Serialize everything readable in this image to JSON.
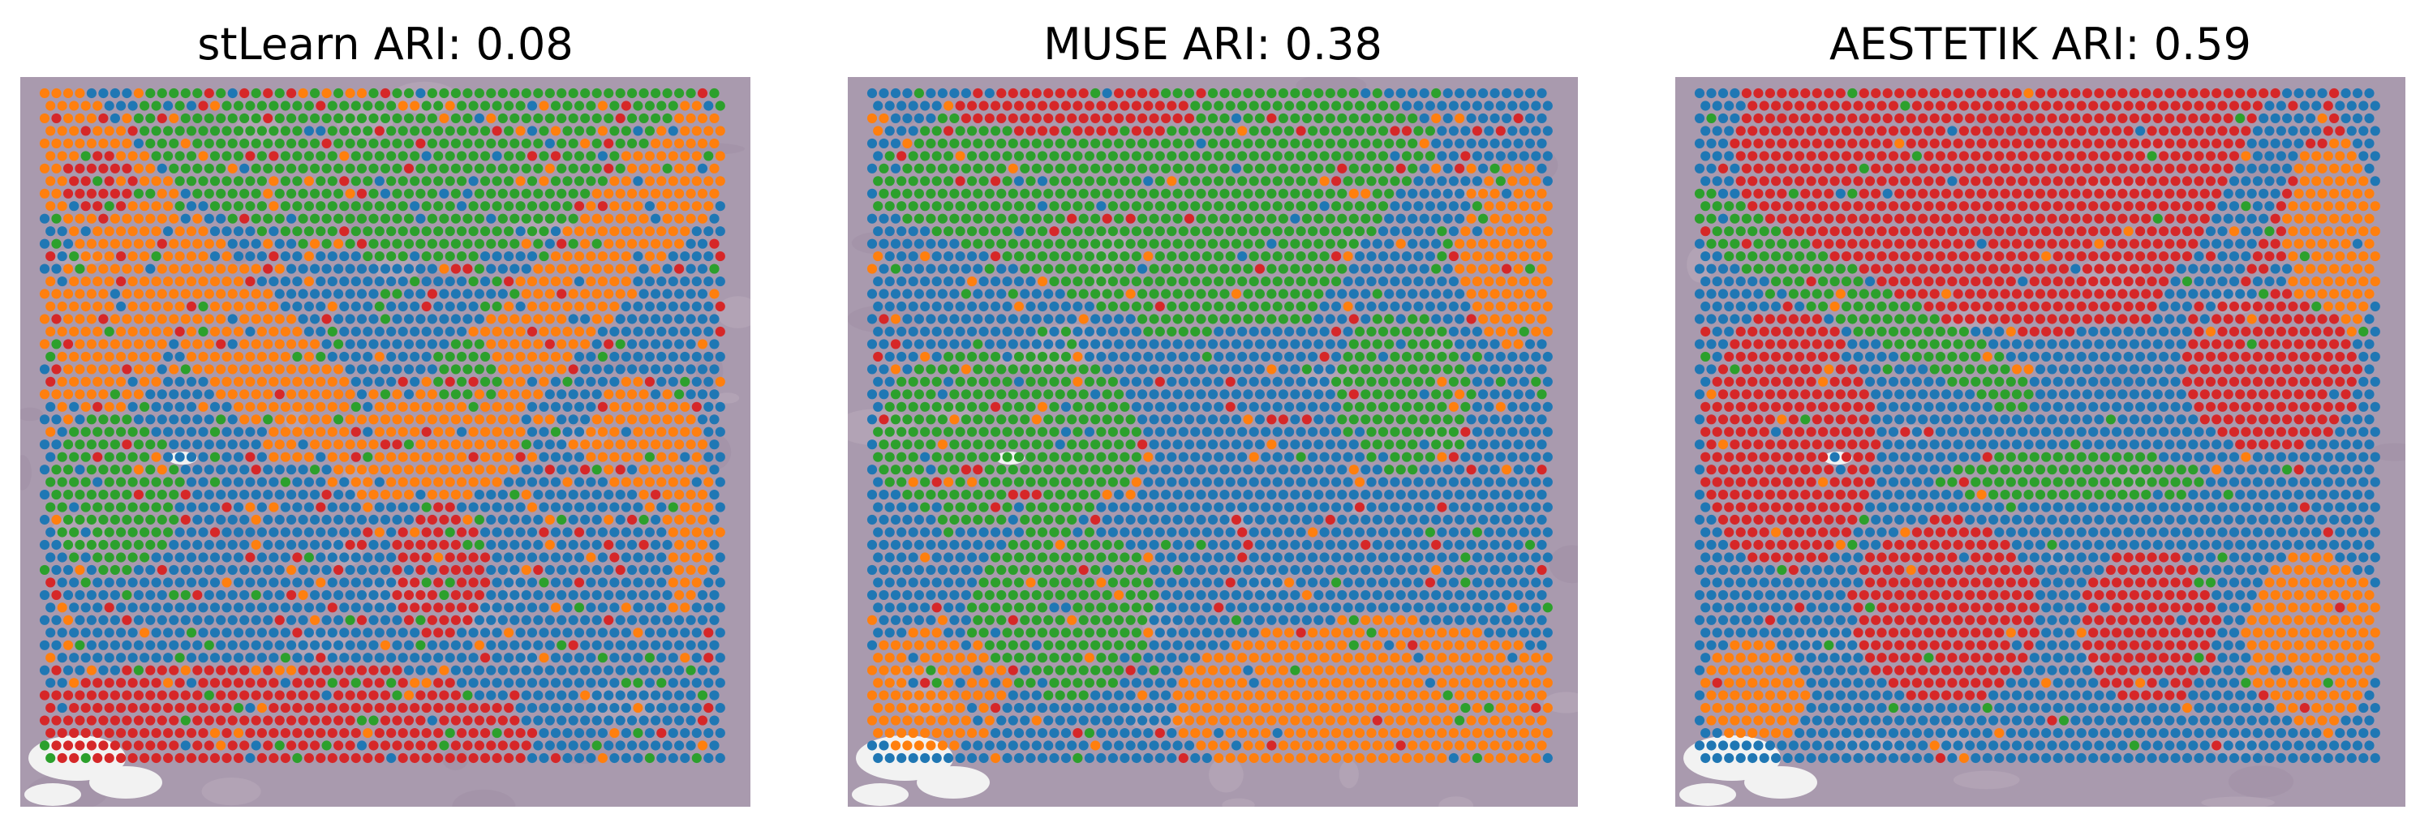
{
  "chart_data": [
    {
      "type": "scatter",
      "title": "stLearn ARI: 0.08",
      "xlabel": "",
      "ylabel": "",
      "grid": false,
      "legend": "none",
      "clusters": [
        "cluster-0",
        "cluster-1",
        "cluster-2",
        "cluster-3"
      ],
      "cluster_colors": [
        "#1f77b4",
        "#ff7f0e",
        "#2ca02c",
        "#d62728"
      ],
      "regions": [
        {
          "cluster": 2,
          "shape": "ellipse",
          "cx": 0.55,
          "cy": 0.0,
          "rx": 0.42,
          "ry": 0.25
        },
        {
          "cluster": 1,
          "shape": "band",
          "x1": 0.0,
          "y1": 0.05,
          "x2": 0.45,
          "y2": 0.55,
          "w": 0.08
        },
        {
          "cluster": 1,
          "shape": "band",
          "x1": 1.0,
          "y1": 0.05,
          "x2": 0.55,
          "y2": 0.55,
          "w": 0.07
        },
        {
          "cluster": 1,
          "shape": "ellipse",
          "cx": 0.08,
          "cy": 0.36,
          "rx": 0.1,
          "ry": 0.12
        },
        {
          "cluster": 1,
          "shape": "ellipse",
          "cx": 0.52,
          "cy": 0.53,
          "rx": 0.2,
          "ry": 0.09
        },
        {
          "cluster": 1,
          "shape": "ellipse",
          "cx": 0.88,
          "cy": 0.62,
          "rx": 0.1,
          "ry": 0.2
        },
        {
          "cluster": 2,
          "shape": "ellipse",
          "cx": 0.1,
          "cy": 0.6,
          "rx": 0.1,
          "ry": 0.12
        },
        {
          "cluster": 2,
          "shape": "ellipse",
          "cx": 0.62,
          "cy": 0.42,
          "rx": 0.05,
          "ry": 0.05
        },
        {
          "cluster": 0,
          "shape": "ellipse",
          "cx": 0.36,
          "cy": 0.68,
          "rx": 0.13,
          "ry": 0.13
        },
        {
          "cluster": 0,
          "shape": "ellipse",
          "cx": 0.8,
          "cy": 0.72,
          "rx": 0.12,
          "ry": 0.14
        },
        {
          "cluster": 3,
          "shape": "ellipse",
          "cx": 0.32,
          "cy": 0.98,
          "rx": 0.4,
          "ry": 0.13
        },
        {
          "cluster": 3,
          "shape": "ellipse",
          "cx": 0.58,
          "cy": 0.72,
          "rx": 0.07,
          "ry": 0.1
        },
        {
          "cluster": 3,
          "shape": "ellipse",
          "cx": 0.08,
          "cy": 0.14,
          "rx": 0.06,
          "ry": 0.05
        }
      ],
      "default_cluster": 0,
      "noise": 0.2
    },
    {
      "type": "scatter",
      "title": "MUSE ARI: 0.38",
      "xlabel": "",
      "ylabel": "",
      "grid": false,
      "legend": "none",
      "clusters": [
        "cluster-0",
        "cluster-1",
        "cluster-2",
        "cluster-3"
      ],
      "cluster_colors": [
        "#1f77b4",
        "#ff7f0e",
        "#2ca02c",
        "#d62728"
      ],
      "regions": [
        {
          "cluster": 2,
          "shape": "ellipse",
          "cx": 0.45,
          "cy": 0.16,
          "rx": 0.45,
          "ry": 0.2
        },
        {
          "cluster": 0,
          "shape": "band",
          "x1": 0.0,
          "y1": 0.22,
          "x2": 0.5,
          "y2": 0.46,
          "w": 0.05
        },
        {
          "cluster": 0,
          "shape": "band",
          "x1": 0.92,
          "y1": 0.02,
          "x2": 0.6,
          "y2": 0.5,
          "w": 0.05
        },
        {
          "cluster": 1,
          "shape": "ellipse",
          "cx": 0.94,
          "cy": 0.24,
          "rx": 0.08,
          "ry": 0.14
        },
        {
          "cluster": 2,
          "shape": "ellipse",
          "cx": 0.2,
          "cy": 0.52,
          "rx": 0.2,
          "ry": 0.14
        },
        {
          "cluster": 2,
          "shape": "ellipse",
          "cx": 0.28,
          "cy": 0.78,
          "rx": 0.14,
          "ry": 0.13
        },
        {
          "cluster": 2,
          "shape": "ellipse",
          "cx": 0.78,
          "cy": 0.45,
          "rx": 0.1,
          "ry": 0.12
        },
        {
          "cluster": 1,
          "shape": "ellipse",
          "cx": 0.74,
          "cy": 0.92,
          "rx": 0.3,
          "ry": 0.13
        },
        {
          "cluster": 1,
          "shape": "ellipse",
          "cx": 0.08,
          "cy": 0.9,
          "rx": 0.12,
          "ry": 0.09
        },
        {
          "cluster": 3,
          "shape": "ellipse",
          "cx": 0.3,
          "cy": 0.03,
          "rx": 0.18,
          "ry": 0.04
        }
      ],
      "default_cluster": 0,
      "noise": 0.14
    },
    {
      "type": "scatter",
      "title": "AESTETIK ARI: 0.59",
      "xlabel": "",
      "ylabel": "",
      "grid": false,
      "legend": "none",
      "clusters": [
        "cluster-0",
        "cluster-1",
        "cluster-2",
        "cluster-3"
      ],
      "cluster_colors": [
        "#1f77b4",
        "#ff7f0e",
        "#2ca02c",
        "#d62728"
      ],
      "regions": [
        {
          "cluster": 3,
          "shape": "ellipse",
          "cx": 0.5,
          "cy": 0.08,
          "rx": 0.45,
          "ry": 0.28
        },
        {
          "cluster": 1,
          "shape": "ellipse",
          "cx": 0.93,
          "cy": 0.22,
          "rx": 0.07,
          "ry": 0.16
        },
        {
          "cluster": 2,
          "shape": "band",
          "x1": 0.0,
          "y1": 0.18,
          "x2": 0.45,
          "y2": 0.44,
          "w": 0.04
        },
        {
          "cluster": 0,
          "shape": "band",
          "x1": 0.0,
          "y1": 0.28,
          "x2": 0.5,
          "y2": 0.55,
          "w": 0.04
        },
        {
          "cluster": 0,
          "shape": "band",
          "x1": 0.88,
          "y1": 0.02,
          "x2": 0.6,
          "y2": 0.55,
          "w": 0.04
        },
        {
          "cluster": 3,
          "shape": "ellipse",
          "cx": 0.13,
          "cy": 0.52,
          "rx": 0.13,
          "ry": 0.2
        },
        {
          "cluster": 3,
          "shape": "ellipse",
          "cx": 0.84,
          "cy": 0.42,
          "rx": 0.13,
          "ry": 0.12
        },
        {
          "cluster": 3,
          "shape": "ellipse",
          "cx": 0.36,
          "cy": 0.78,
          "rx": 0.14,
          "ry": 0.14
        },
        {
          "cluster": 3,
          "shape": "ellipse",
          "cx": 0.66,
          "cy": 0.8,
          "rx": 0.1,
          "ry": 0.12
        },
        {
          "cluster": 2,
          "shape": "ellipse",
          "cx": 0.55,
          "cy": 0.58,
          "rx": 0.2,
          "ry": 0.04
        },
        {
          "cluster": 1,
          "shape": "ellipse",
          "cx": 0.9,
          "cy": 0.82,
          "rx": 0.1,
          "ry": 0.13
        },
        {
          "cluster": 1,
          "shape": "ellipse",
          "cx": 0.08,
          "cy": 0.9,
          "rx": 0.08,
          "ry": 0.08
        }
      ],
      "default_cluster": 0,
      "noise": 0.06
    }
  ]
}
